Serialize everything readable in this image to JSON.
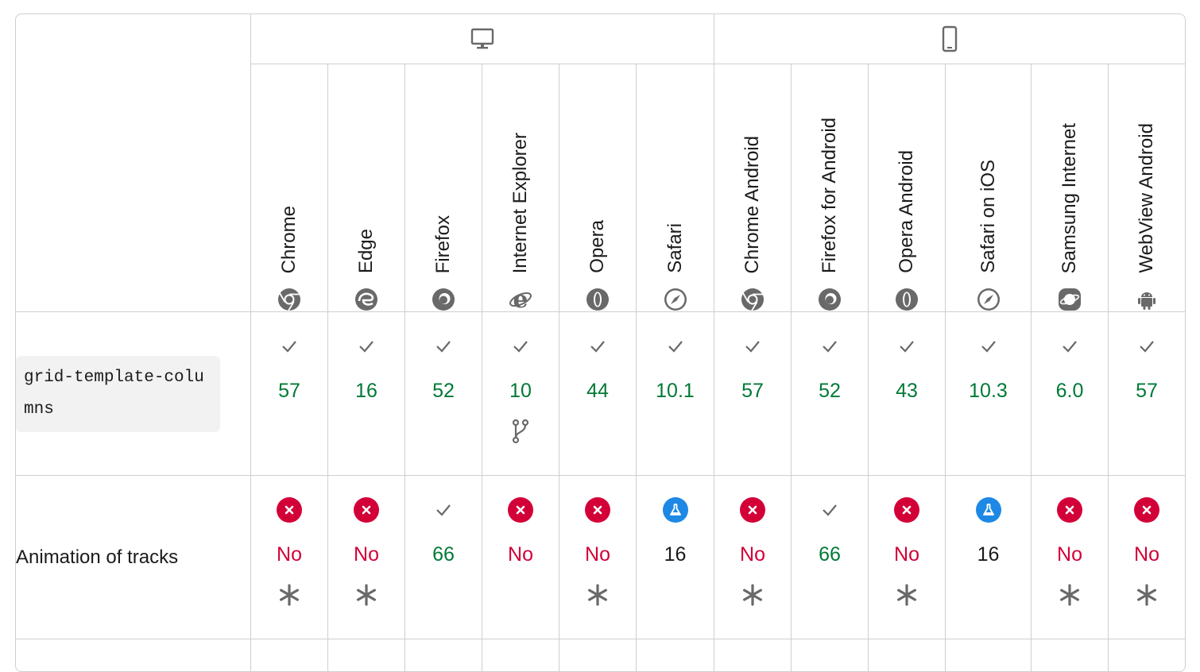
{
  "platforms": [
    {
      "name": "desktop-icon",
      "span": 6
    },
    {
      "name": "mobile-icon",
      "span": 6
    }
  ],
  "browsers": [
    {
      "name": "Chrome",
      "icon": "chrome-icon"
    },
    {
      "name": "Edge",
      "icon": "edge-icon"
    },
    {
      "name": "Firefox",
      "icon": "firefox-icon"
    },
    {
      "name": "Internet Explorer",
      "icon": "internet-explorer-icon"
    },
    {
      "name": "Opera",
      "icon": "opera-icon"
    },
    {
      "name": "Safari",
      "icon": "safari-icon"
    },
    {
      "name": "Chrome Android",
      "icon": "chrome-icon"
    },
    {
      "name": "Firefox for Android",
      "icon": "firefox-icon"
    },
    {
      "name": "Opera Android",
      "icon": "opera-icon"
    },
    {
      "name": "Safari on iOS",
      "icon": "safari-icon"
    },
    {
      "name": "Samsung Internet",
      "icon": "samsung-internet-icon"
    },
    {
      "name": "WebView Android",
      "icon": "android-icon"
    }
  ],
  "features": [
    {
      "name": "grid-template-columns",
      "is_code": true,
      "support": [
        {
          "status": "yes",
          "version": "57"
        },
        {
          "status": "yes",
          "version": "16"
        },
        {
          "status": "yes",
          "version": "52"
        },
        {
          "status": "yes",
          "version": "10",
          "note": "prefix-icon"
        },
        {
          "status": "yes",
          "version": "44"
        },
        {
          "status": "yes",
          "version": "10.1"
        },
        {
          "status": "yes",
          "version": "57"
        },
        {
          "status": "yes",
          "version": "52"
        },
        {
          "status": "yes",
          "version": "43"
        },
        {
          "status": "yes",
          "version": "10.3"
        },
        {
          "status": "yes",
          "version": "6.0"
        },
        {
          "status": "yes",
          "version": "57"
        }
      ]
    },
    {
      "name": "Animation of tracks",
      "is_code": false,
      "support": [
        {
          "status": "no",
          "version": "No",
          "note": "asterisk-icon"
        },
        {
          "status": "no",
          "version": "No",
          "note": "asterisk-icon"
        },
        {
          "status": "yes",
          "version": "66"
        },
        {
          "status": "no",
          "version": "No"
        },
        {
          "status": "no",
          "version": "No",
          "note": "asterisk-icon"
        },
        {
          "status": "preview",
          "version": "16"
        },
        {
          "status": "no",
          "version": "No",
          "note": "asterisk-icon"
        },
        {
          "status": "yes",
          "version": "66"
        },
        {
          "status": "no",
          "version": "No",
          "note": "asterisk-icon"
        },
        {
          "status": "preview",
          "version": "16"
        },
        {
          "status": "no",
          "version": "No",
          "note": "asterisk-icon"
        },
        {
          "status": "no",
          "version": "No",
          "note": "asterisk-icon"
        }
      ]
    }
  ],
  "colors": {
    "yes": "#007936",
    "no": "#d30038",
    "preview": "#1e88e5",
    "border": "#cfcfcf",
    "icon_gray": "#696969"
  }
}
